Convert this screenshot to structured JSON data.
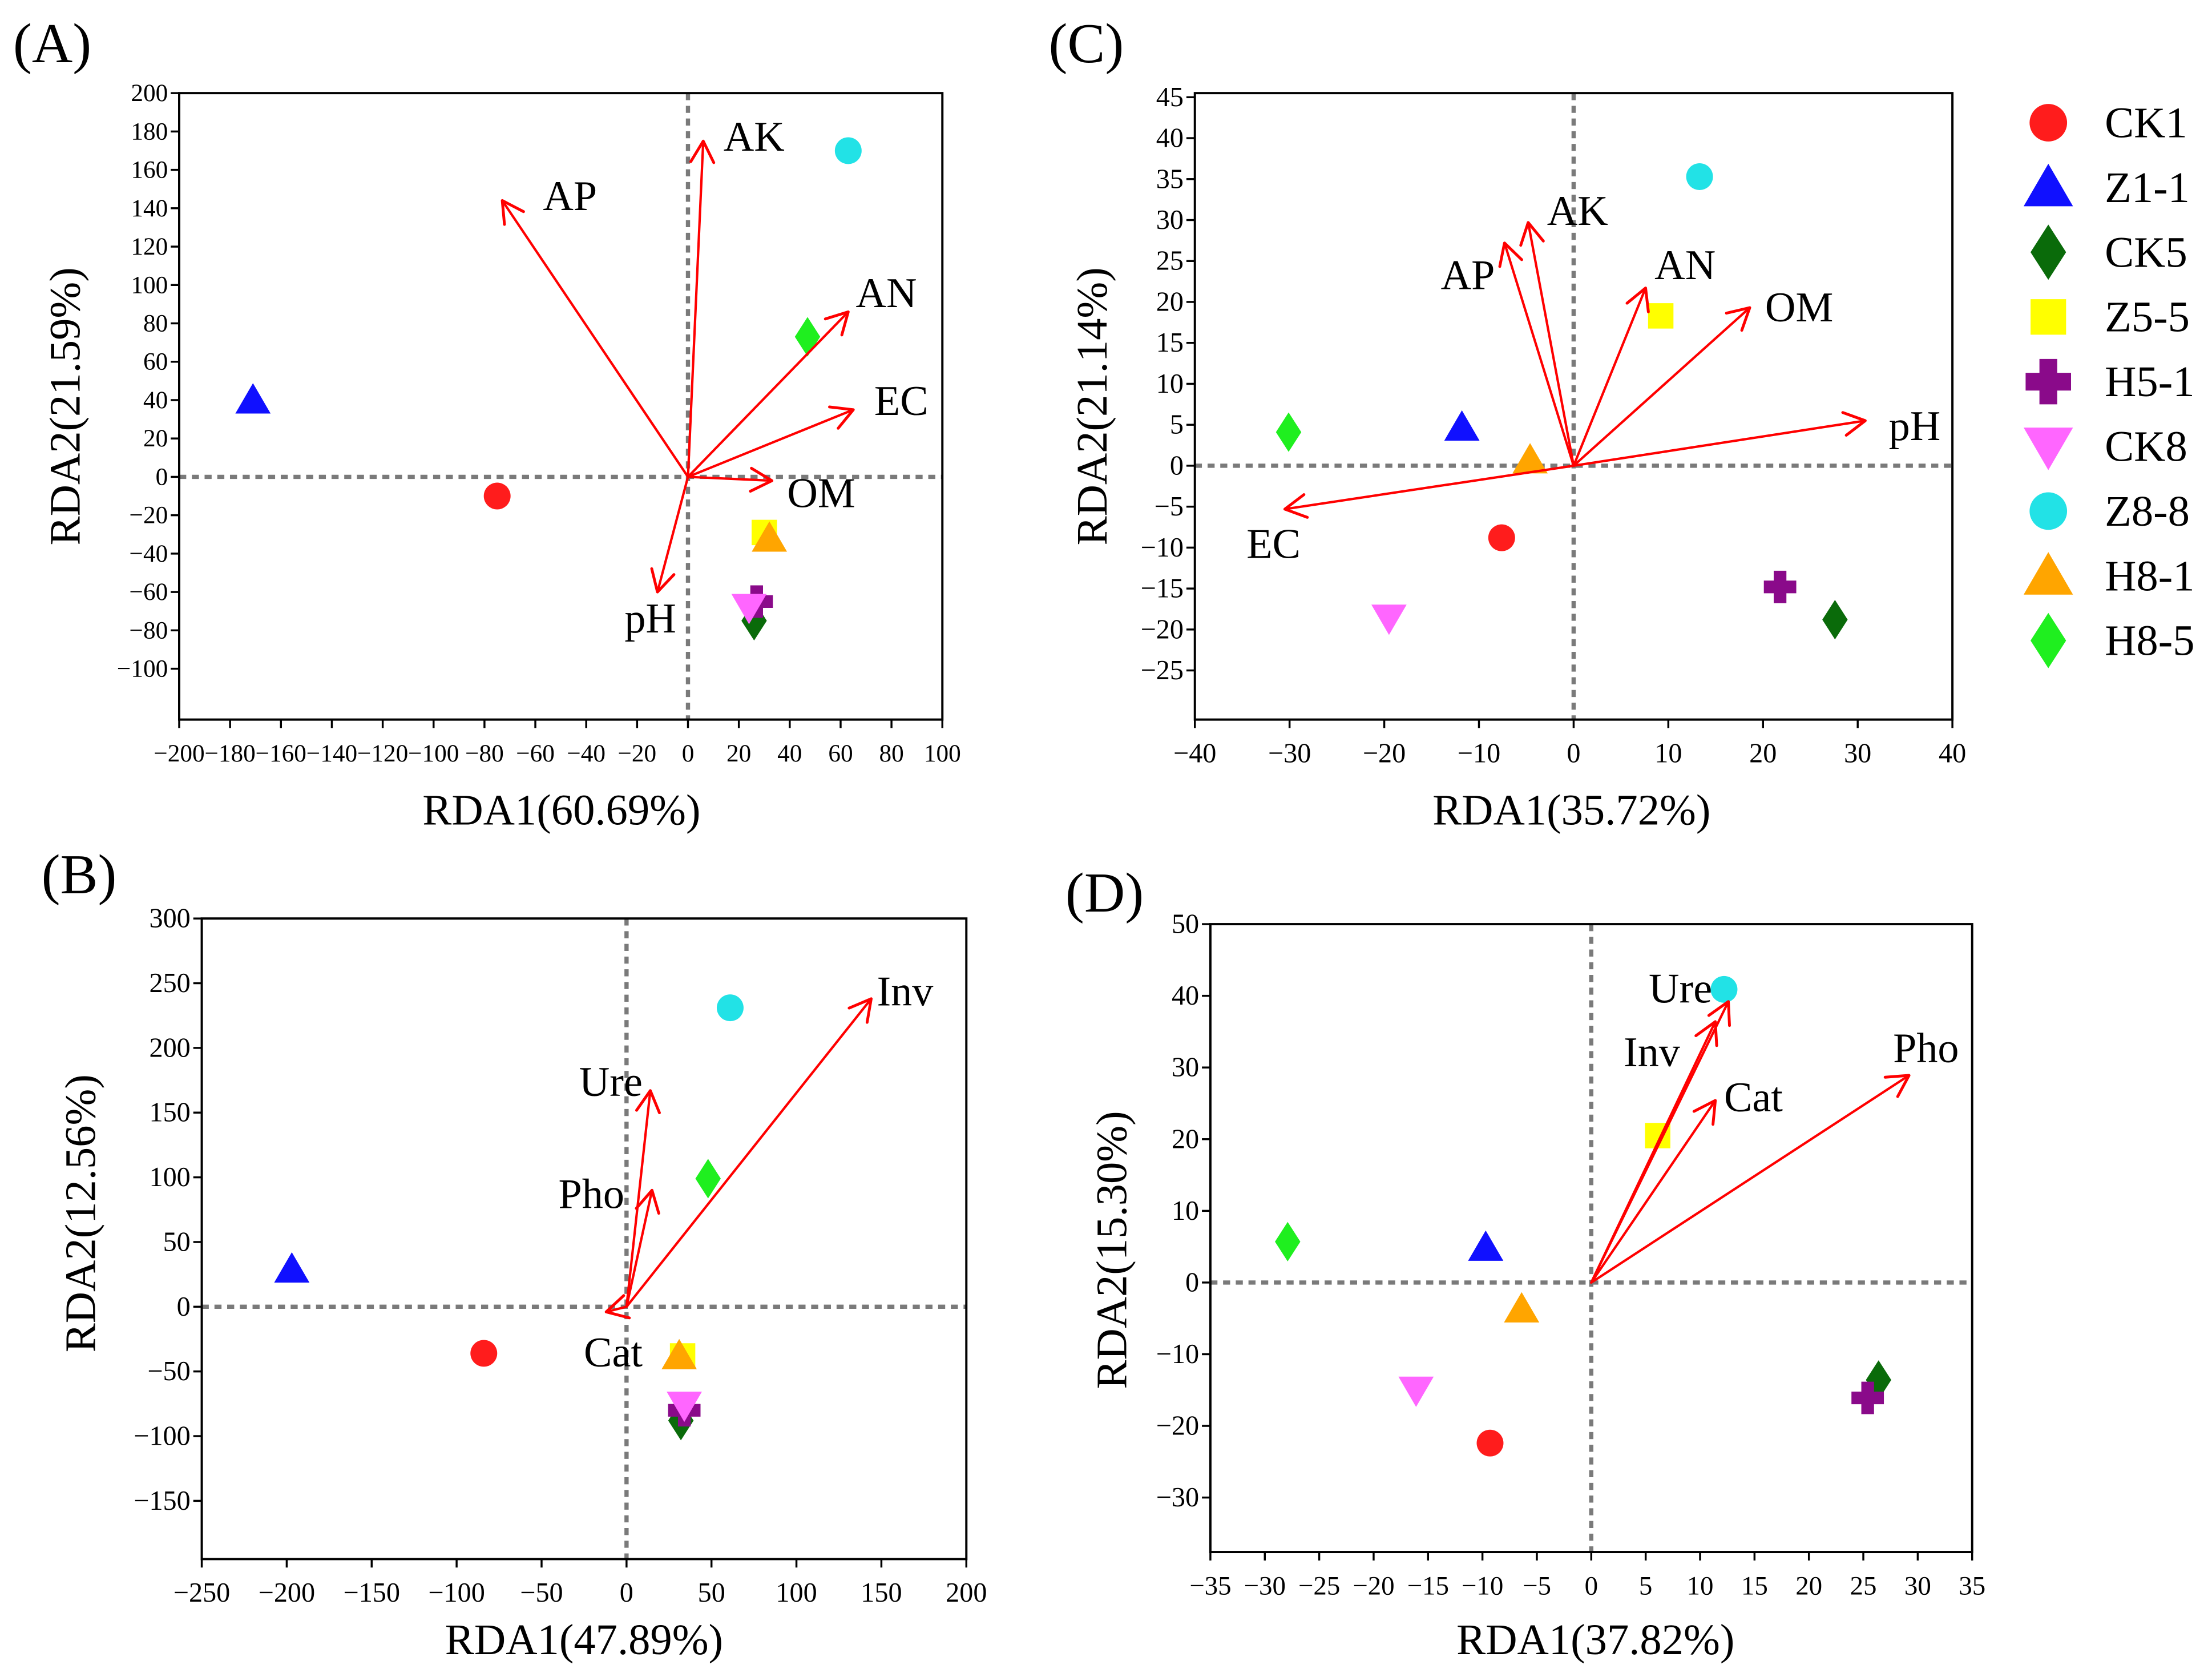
{
  "arrow_color": "#ff0000",
  "legend": {
    "entries": [
      {
        "name": "CK1",
        "color": "#ff1c1c",
        "marker": "circle"
      },
      {
        "name": "Z1-1",
        "color": "#1010ff",
        "marker": "triangle-up"
      },
      {
        "name": "CK5",
        "color": "#0a6b0a",
        "marker": "diamond"
      },
      {
        "name": "Z5-5",
        "color": "#ffff00",
        "marker": "square"
      },
      {
        "name": "H5-1",
        "color": "#8a0a8a",
        "marker": "cross"
      },
      {
        "name": "CK8",
        "color": "#ff66ff",
        "marker": "triangle-down"
      },
      {
        "name": "Z8-8",
        "color": "#22e2e6",
        "marker": "circle"
      },
      {
        "name": "H8-1",
        "color": "#ffa500",
        "marker": "triangle-up"
      },
      {
        "name": "H8-5",
        "color": "#1fef1f",
        "marker": "diamond"
      }
    ]
  },
  "chart_data": [
    {
      "type": "scatter",
      "title": "(A)",
      "xlabel": "RDA1(60.69%)",
      "ylabel": "RDA2(21.59%)",
      "xlim": [
        -200,
        100
      ],
      "ylim": [
        -126.5,
        200
      ],
      "xticks": [
        "−200",
        "−180",
        "−160",
        "−140",
        "−120",
        "−100",
        "−80",
        "−60",
        "−40",
        "−20",
        "0",
        "20",
        "40",
        "60",
        "80",
        "100"
      ],
      "yticks": [
        "−100",
        "−80",
        "−60",
        "−40",
        "−20",
        "0",
        "20",
        "40",
        "60",
        "80",
        "100",
        "120",
        "140",
        "160",
        "180",
        "200"
      ],
      "points": {
        "CK1": {
          "x": -75,
          "y": -10
        },
        "Z1-1": {
          "x": -171,
          "y": 40
        },
        "CK5": {
          "x": 26,
          "y": -75
        },
        "Z5-5": {
          "x": 30,
          "y": -29
        },
        "H5-1": {
          "x": 27,
          "y": -65
        },
        "CK8": {
          "x": 24,
          "y": -68
        },
        "Z8-8": {
          "x": 63,
          "y": 170
        },
        "H8-1": {
          "x": 32,
          "y": -32
        },
        "H8-5": {
          "x": 47,
          "y": 73
        }
      },
      "vectors": [
        {
          "label": "AK",
          "x": 6,
          "y": 175
        },
        {
          "label": "AP",
          "x": -73,
          "y": 144
        },
        {
          "label": "AN",
          "x": 63,
          "y": 86
        },
        {
          "label": "EC",
          "x": 65,
          "y": 35
        },
        {
          "label": "OM",
          "x": 33,
          "y": -2
        },
        {
          "label": "pH",
          "x": -12,
          "y": -60
        }
      ]
    },
    {
      "type": "scatter",
      "title": "(B)",
      "xlabel": "RDA1(47.89%)",
      "ylabel": "RDA2(12.56%)",
      "xlim": [
        -250,
        200
      ],
      "ylim": [
        -195,
        300
      ],
      "xticks": [
        "−250",
        "−200",
        "−150",
        "−100",
        "−50",
        "0",
        "50",
        "100",
        "150",
        "200"
      ],
      "yticks": [
        "−150",
        "−100",
        "−50",
        "0",
        "50",
        "100",
        "150",
        "200",
        "250",
        "300"
      ],
      "points": {
        "CK1": {
          "x": -84,
          "y": -36
        },
        "Z1-1": {
          "x": -197,
          "y": 29
        },
        "CK5": {
          "x": 32,
          "y": -88
        },
        "Z5-5": {
          "x": 33,
          "y": -38
        },
        "H5-1": {
          "x": 34,
          "y": -80
        },
        "CK8": {
          "x": 34,
          "y": -76
        },
        "Z8-8": {
          "x": 61,
          "y": 231
        },
        "H8-1": {
          "x": 31,
          "y": -38
        },
        "H8-5": {
          "x": 48,
          "y": 99
        }
      },
      "vectors": [
        {
          "label": "Inv",
          "x": 144,
          "y": 238
        },
        {
          "label": "Ure",
          "x": 14,
          "y": 167
        },
        {
          "label": "Pho",
          "x": 15,
          "y": 90
        },
        {
          "label": "Cat",
          "x": -12,
          "y": -4
        }
      ]
    },
    {
      "type": "scatter",
      "title": "(C)",
      "xlabel": "RDA1(35.72%)",
      "ylabel": "RDA2(21.14%)",
      "xlim": [
        -40,
        40
      ],
      "ylim": [
        -31,
        45.5
      ],
      "xticks": [
        "−40",
        "−30",
        "−20",
        "−10",
        "0",
        "10",
        "20",
        "30",
        "40"
      ],
      "yticks": [
        "−25",
        "−20",
        "−15",
        "−10",
        "−5",
        "0",
        "5",
        "10",
        "15",
        "20",
        "25",
        "30",
        "35",
        "40",
        "45"
      ],
      "points": {
        "CK1": {
          "x": -7.6,
          "y": -8.8
        },
        "Z1-1": {
          "x": -11.8,
          "y": 4.7
        },
        "CK5": {
          "x": 27.6,
          "y": -18.8
        },
        "Z5-5": {
          "x": 9.2,
          "y": 18.3
        },
        "H5-1": {
          "x": 21.8,
          "y": -14.8
        },
        "CK8": {
          "x": -19.5,
          "y": -18.6
        },
        "Z8-8": {
          "x": 13.3,
          "y": 35.3
        },
        "H8-1": {
          "x": -4.6,
          "y": 0.7
        },
        "H8-5": {
          "x": -30.1,
          "y": 4.1
        }
      },
      "vectors": [
        {
          "label": "AK",
          "x": -4.8,
          "y": 29.7
        },
        {
          "label": "AP",
          "x": -7.3,
          "y": 27.2
        },
        {
          "label": "AN",
          "x": 7.6,
          "y": 21.7
        },
        {
          "label": "OM",
          "x": 18.6,
          "y": 19.3
        },
        {
          "label": "pH",
          "x": 30.8,
          "y": 5.5
        },
        {
          "label": "EC",
          "x": -30.5,
          "y": -5.3
        }
      ]
    },
    {
      "type": "scatter",
      "title": "(D)",
      "xlabel": "RDA1(37.82%)",
      "ylabel": "RDA2(15.30%)",
      "xlim": [
        -35,
        35
      ],
      "ylim": [
        -37.6,
        50
      ],
      "xticks": [
        "−35",
        "−30",
        "−25",
        "−20",
        "−15",
        "−10",
        "−5",
        "0",
        "5",
        "10",
        "15",
        "20",
        "25",
        "30",
        "35"
      ],
      "yticks": [
        "−30",
        "−20",
        "−10",
        "0",
        "10",
        "20",
        "30",
        "40",
        "50"
      ],
      "points": {
        "CK1": {
          "x": -9.3,
          "y": -22.4
        },
        "Z1-1": {
          "x": -9.7,
          "y": 4.9
        },
        "CK5": {
          "x": 26.4,
          "y": -13.6
        },
        "Z5-5": {
          "x": 6.1,
          "y": 20.5
        },
        "H5-1": {
          "x": 25.4,
          "y": -16.1
        },
        "CK8": {
          "x": -16.1,
          "y": -15.0
        },
        "Z8-8": {
          "x": 12.2,
          "y": 40.9
        },
        "H8-1": {
          "x": -6.4,
          "y": -3.7
        },
        "H8-5": {
          "x": -27.9,
          "y": 5.7
        }
      },
      "vectors": [
        {
          "label": "Ure",
          "x": 12.6,
          "y": 39.2
        },
        {
          "label": "Inv",
          "x": 11.4,
          "y": 36.4
        },
        {
          "label": "Cat",
          "x": 11.4,
          "y": 25.4
        },
        {
          "label": "Pho",
          "x": 29.2,
          "y": 28.9
        }
      ]
    }
  ]
}
